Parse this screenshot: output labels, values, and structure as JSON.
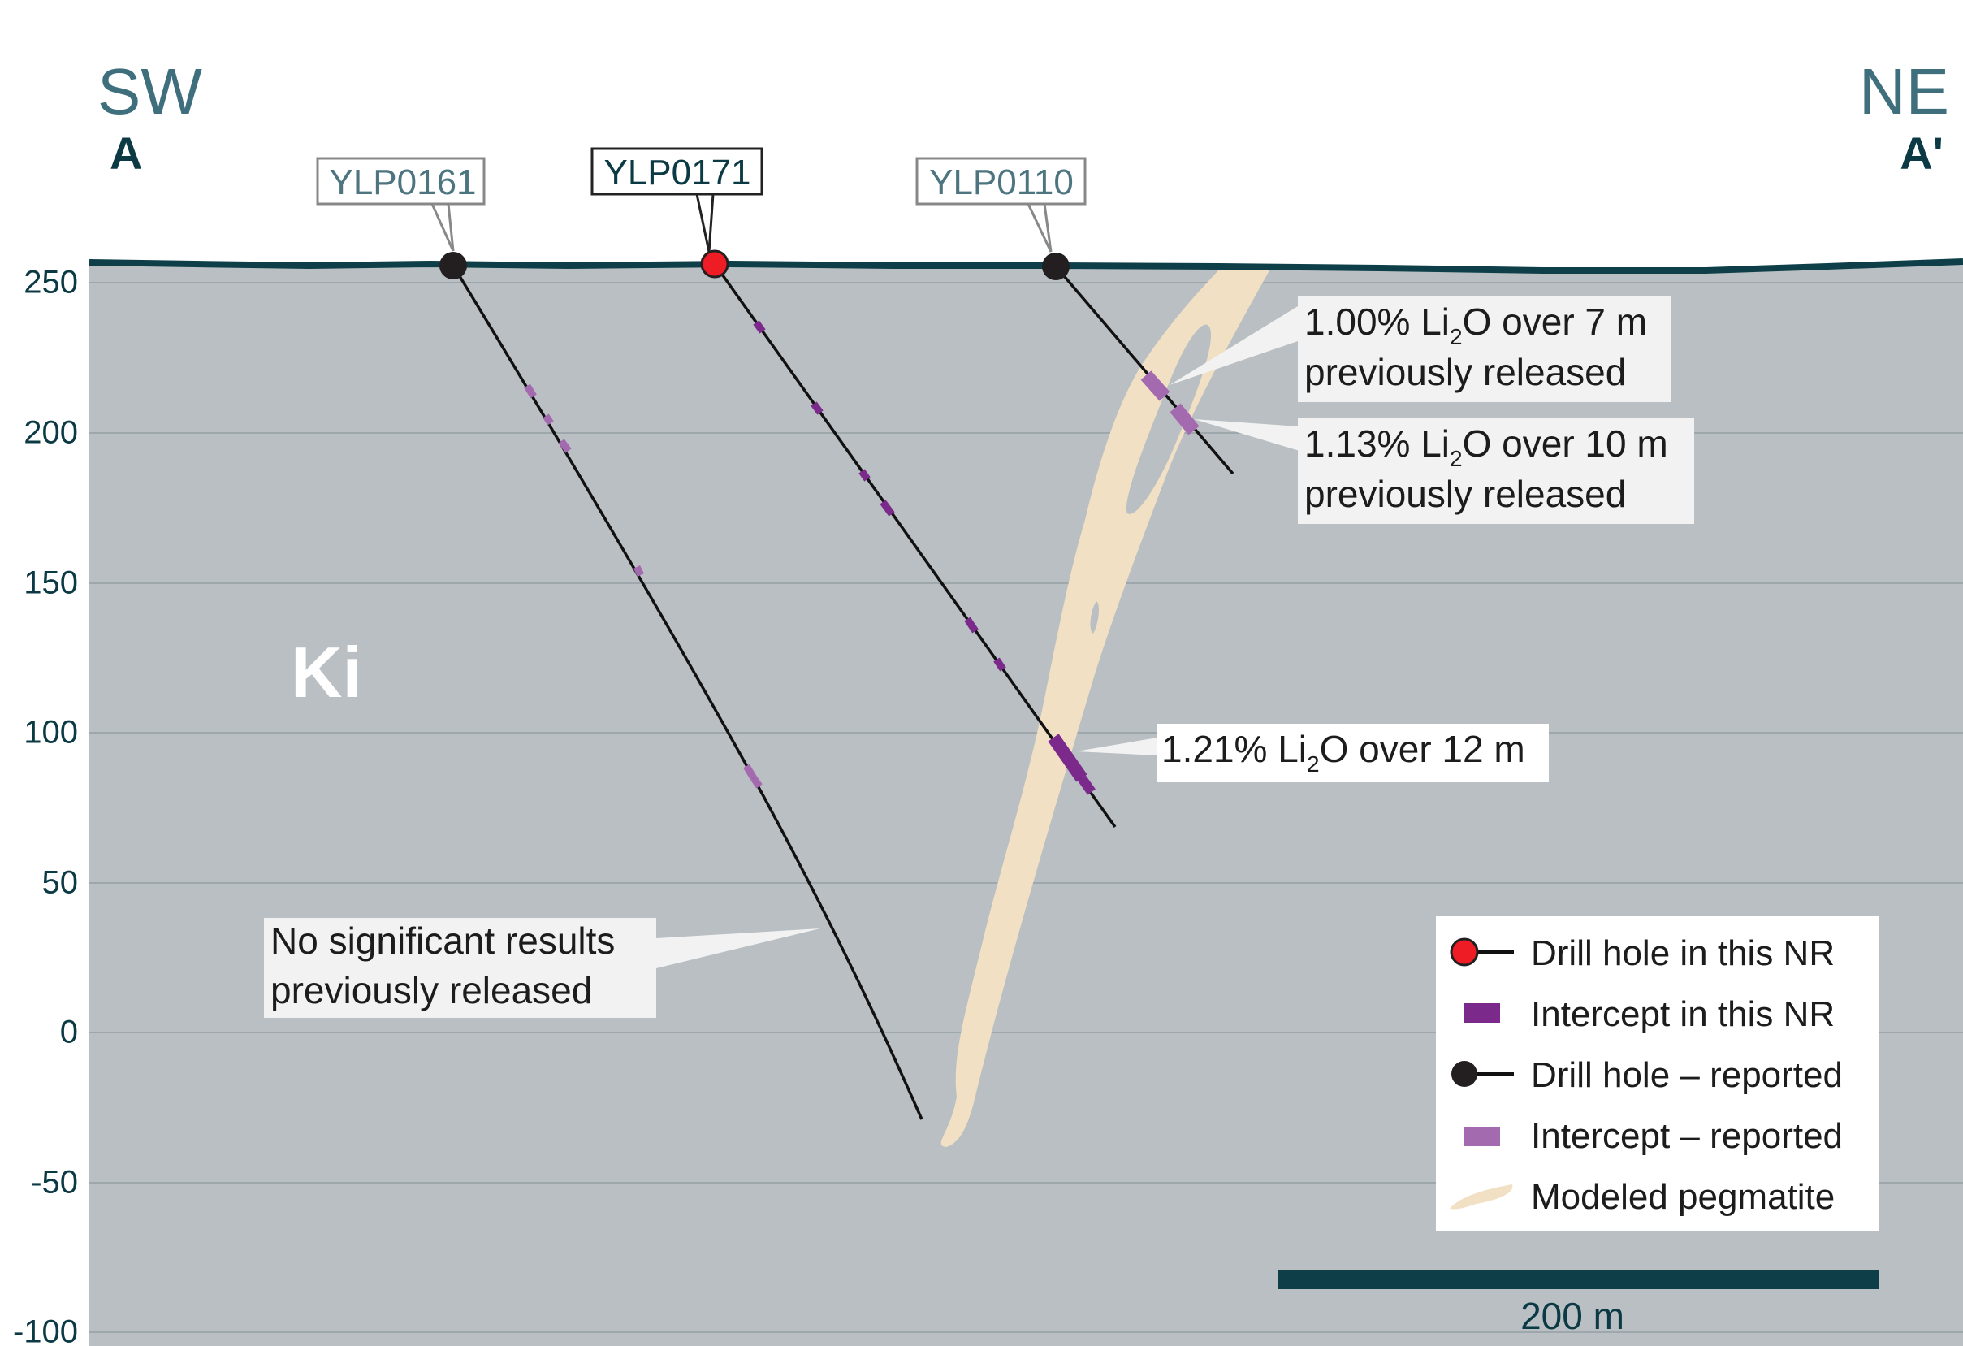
{
  "direction": {
    "left": {
      "bearing": "SW",
      "label": "A"
    },
    "right": {
      "bearing": "NE",
      "label": "A'"
    }
  },
  "elevation_ticks": [
    "250",
    "200",
    "150",
    "100",
    "50",
    "0",
    "-50",
    "-100"
  ],
  "drill_holes": [
    {
      "id": "YLP0161",
      "type": "reported"
    },
    {
      "id": "YLP0171",
      "type": "this NR"
    },
    {
      "id": "YLP0110",
      "type": "reported"
    }
  ],
  "rock_unit": "Ki",
  "callouts": {
    "c1": {
      "grade": "1.00% Li",
      "sub": "2",
      "rest": "O over 7 m",
      "note": "previously released"
    },
    "c2": {
      "grade": "1.13% Li",
      "sub": "2",
      "rest": "O over 10 m",
      "note": "previously released"
    },
    "c3": {
      "grade": "1.21% Li",
      "sub": "2",
      "rest": "O over 12 m"
    },
    "c4": {
      "line1": "No significant results",
      "line2": "previously released"
    }
  },
  "legend": {
    "items": [
      {
        "label": "Drill hole in this NR",
        "icon": "red-collar-icon"
      },
      {
        "label": "Intercept in this NR",
        "icon": "dark-purple-intercept-icon"
      },
      {
        "label": "Drill hole – reported",
        "icon": "black-collar-icon"
      },
      {
        "label": "Intercept – reported",
        "icon": "light-purple-intercept-icon"
      },
      {
        "label": "Modeled pegmatite",
        "icon": "pegmatite-swatch-icon"
      }
    ]
  },
  "scale_bar": {
    "label": "200 m"
  },
  "colors": {
    "host_rock": "#b9bfc2",
    "surface": "#0e3f48",
    "pegmatite": "#f1e0c4",
    "collar_new": "#ee1c24",
    "collar_reported": "#231f20",
    "intercept_new": "#7b2a8c",
    "intercept_reported": "#a46ab0",
    "accent_text": "#0b3a45",
    "label_grey": "#4d7580"
  }
}
